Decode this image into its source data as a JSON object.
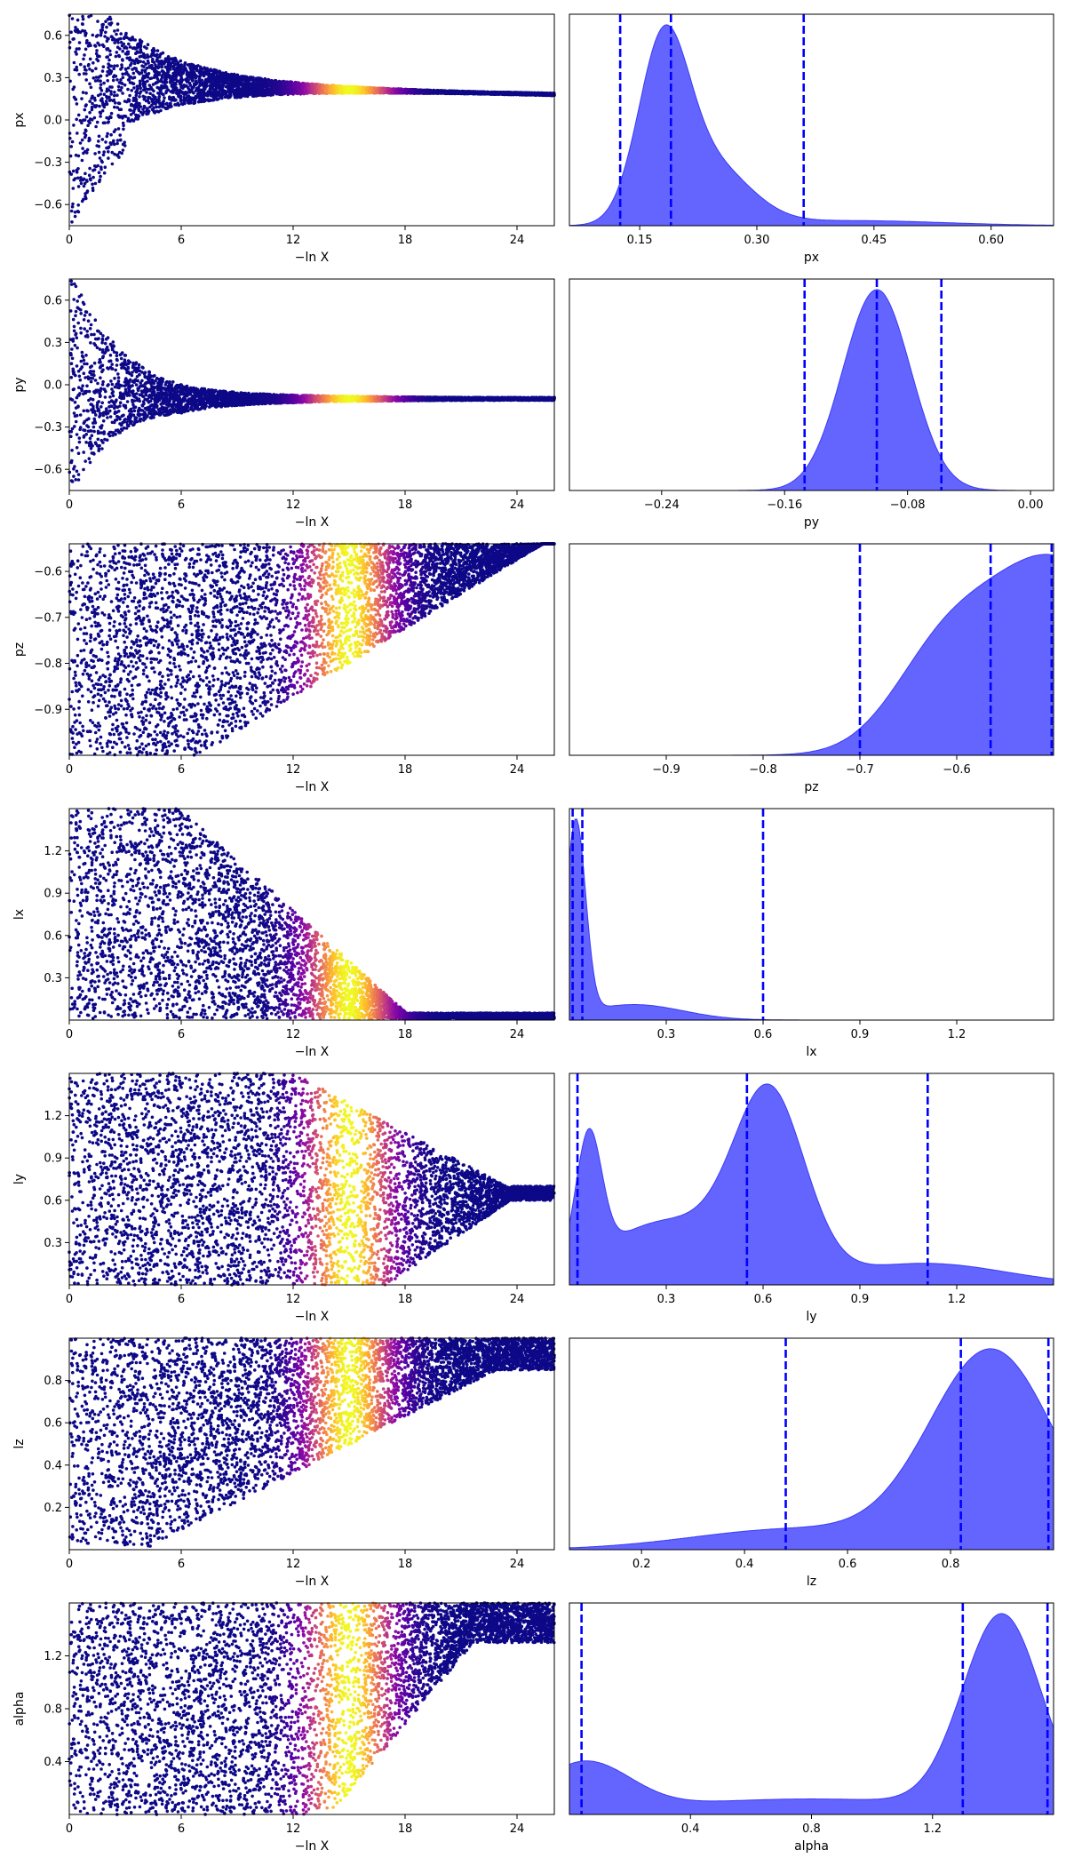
{
  "chart_data": [
    {
      "type": "scatter",
      "param": "px",
      "xlabel": "−ln X",
      "ylabel": "px",
      "xlim": [
        0,
        26
      ],
      "ylim": [
        -0.75,
        0.75
      ],
      "xticks": [
        "0",
        "6",
        "12",
        "18",
        "24"
      ],
      "yticks": [
        "0.6",
        "0.3",
        "0.0",
        "−0.3",
        "−0.6"
      ],
      "colormap": "plasma",
      "point_color_low": "#0d0887",
      "point_color_high": "#f0f921",
      "shape": {
        "center_start": 0.25,
        "center_end": 0.18,
        "spread_start": 0.75,
        "spread_end": 0.01,
        "bright_range": [
          12,
          18
        ]
      }
    },
    {
      "type": "area",
      "param": "px",
      "xlabel": "px",
      "xlim": [
        0.06,
        0.68
      ],
      "xticks": [
        "0.15",
        "0.30",
        "0.45",
        "0.60"
      ],
      "fill_color": "#6464ff",
      "quantile_lines": [
        0.125,
        0.19,
        0.36
      ],
      "line_color": "#0000ff",
      "peak_at": 0.18
    },
    {
      "type": "scatter",
      "param": "py",
      "xlabel": "−ln X",
      "ylabel": "py",
      "xlim": [
        0,
        26
      ],
      "ylim": [
        -0.75,
        0.75
      ],
      "xticks": [
        "0",
        "6",
        "12",
        "18",
        "24"
      ],
      "yticks": [
        "0.6",
        "0.3",
        "0.0",
        "−0.3",
        "−0.6"
      ],
      "colormap": "plasma",
      "shape": {
        "center_start": 0.0,
        "center_end": -0.1,
        "spread_start": 0.75,
        "spread_end": 0.01,
        "bright_range": [
          12,
          18
        ]
      }
    },
    {
      "type": "area",
      "param": "py",
      "xlabel": "py",
      "xlim": [
        -0.3,
        0.015
      ],
      "xticks": [
        "−0.24",
        "−0.16",
        "−0.08",
        "0.00"
      ],
      "fill_color": "#6464ff",
      "quantile_lines": [
        -0.147,
        -0.1,
        -0.058
      ],
      "line_color": "#0000ff",
      "peak_at": -0.1
    },
    {
      "type": "scatter",
      "param": "pz",
      "xlabel": "−ln X",
      "ylabel": "pz",
      "xlim": [
        0,
        26
      ],
      "ylim": [
        -1.0,
        -0.54
      ],
      "xticks": [
        "0",
        "6",
        "12",
        "18",
        "24"
      ],
      "yticks": [
        "−0.6",
        "−0.7",
        "−0.8",
        "−0.9"
      ],
      "colormap": "plasma",
      "shape": {
        "bright_range": [
          12,
          18
        ]
      }
    },
    {
      "type": "area",
      "param": "pz",
      "xlabel": "pz",
      "xlim": [
        -1.0,
        -0.5
      ],
      "xticks": [
        "−0.9",
        "−0.8",
        "−0.7",
        "−0.6"
      ],
      "fill_color": "#6464ff",
      "quantile_lines": [
        -0.7,
        -0.565,
        -0.502
      ],
      "line_color": "#0000ff"
    },
    {
      "type": "scatter",
      "param": "lx",
      "xlabel": "−ln X",
      "ylabel": "lx",
      "xlim": [
        0,
        26
      ],
      "ylim": [
        0,
        1.5
      ],
      "xticks": [
        "0",
        "6",
        "12",
        "18",
        "24"
      ],
      "yticks": [
        "1.2",
        "0.9",
        "0.6",
        "0.3"
      ],
      "colormap": "plasma",
      "shape": {
        "bright_range": [
          12,
          18
        ]
      }
    },
    {
      "type": "area",
      "param": "lx",
      "xlabel": "lx",
      "xlim": [
        0,
        1.5
      ],
      "xticks": [
        "0.3",
        "0.6",
        "0.9",
        "1.2"
      ],
      "fill_color": "#6464ff",
      "quantile_lines": [
        0.01,
        0.04,
        0.6
      ],
      "line_color": "#0000ff",
      "peak_at": 0.02
    },
    {
      "type": "scatter",
      "param": "ly",
      "xlabel": "−ln X",
      "ylabel": "ly",
      "xlim": [
        0,
        26
      ],
      "ylim": [
        0,
        1.5
      ],
      "xticks": [
        "0",
        "6",
        "12",
        "18",
        "24"
      ],
      "yticks": [
        "1.2",
        "0.9",
        "0.6",
        "0.3"
      ],
      "colormap": "plasma",
      "shape": {
        "bright_range": [
          12,
          18
        ]
      }
    },
    {
      "type": "area",
      "param": "ly",
      "xlabel": "ly",
      "xlim": [
        0,
        1.5
      ],
      "xticks": [
        "0.3",
        "0.6",
        "0.9",
        "1.2"
      ],
      "fill_color": "#6464ff",
      "quantile_lines": [
        0.025,
        0.55,
        1.11
      ],
      "line_color": "#0000ff",
      "peaks_at": [
        0.06,
        0.62
      ]
    },
    {
      "type": "scatter",
      "param": "lz",
      "xlabel": "−ln X",
      "ylabel": "lz",
      "xlim": [
        0,
        26
      ],
      "ylim": [
        0,
        1.0
      ],
      "xticks": [
        "0",
        "6",
        "12",
        "18",
        "24"
      ],
      "yticks": [
        "0.8",
        "0.6",
        "0.4",
        "0.2"
      ],
      "colormap": "plasma",
      "shape": {
        "bright_range": [
          12,
          18
        ]
      }
    },
    {
      "type": "area",
      "param": "lz",
      "xlabel": "lz",
      "xlim": [
        0.06,
        1.0
      ],
      "xticks": [
        "0.2",
        "0.4",
        "0.6",
        "0.8"
      ],
      "fill_color": "#6464ff",
      "quantile_lines": [
        0.48,
        0.82,
        0.99
      ],
      "line_color": "#0000ff",
      "peak_at": 0.88
    },
    {
      "type": "scatter",
      "param": "alpha",
      "xlabel": "−ln X",
      "ylabel": "alpha",
      "xlim": [
        0,
        26
      ],
      "ylim": [
        0,
        1.6
      ],
      "xticks": [
        "0",
        "6",
        "12",
        "18",
        "24"
      ],
      "yticks": [
        "1.2",
        "0.8",
        "0.4"
      ],
      "colormap": "plasma",
      "shape": {
        "bright_range": [
          12,
          18
        ]
      }
    },
    {
      "type": "area",
      "param": "alpha",
      "xlabel": "alpha",
      "xlim": [
        0,
        1.6
      ],
      "xticks": [
        "0.4",
        "0.8",
        "1.2"
      ],
      "fill_color": "#6464ff",
      "quantile_lines": [
        0.04,
        1.3,
        1.58
      ],
      "line_color": "#0000ff",
      "peak_at": 1.43
    }
  ]
}
